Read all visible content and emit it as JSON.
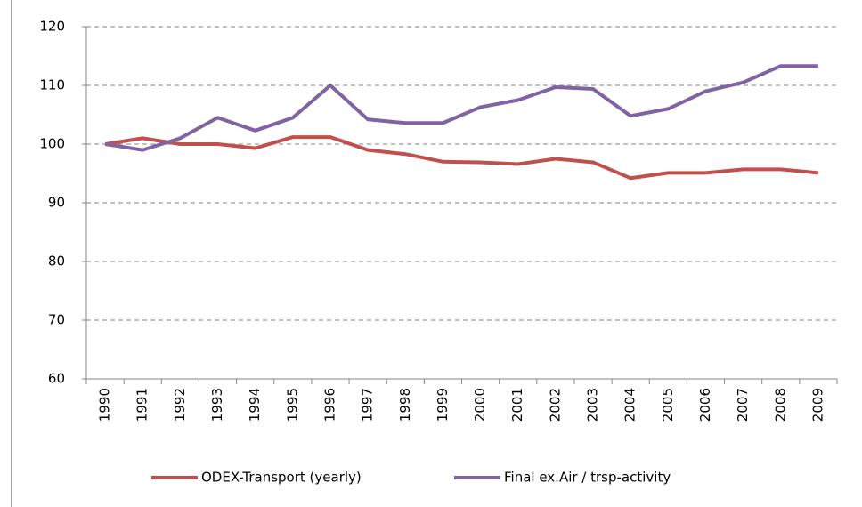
{
  "chart_data": {
    "type": "line",
    "categories": [
      "1990",
      "1991",
      "1992",
      "1993",
      "1994",
      "1995",
      "1996",
      "1997",
      "1998",
      "1999",
      "2000",
      "2001",
      "2002",
      "2003",
      "2004",
      "2005",
      "2006",
      "2007",
      "2008",
      "2009"
    ],
    "series": [
      {
        "name": "ODEX-Transport (yearly)",
        "color": "#c0504d",
        "values": [
          100,
          101,
          100,
          100,
          99.3,
          101.2,
          101.2,
          99,
          98.3,
          97,
          96.9,
          96.6,
          97.5,
          96.9,
          94.2,
          95.1,
          95.1,
          95.7,
          95.7,
          95.1
        ]
      },
      {
        "name": "Final ex.Air / trsp-activity",
        "color": "#8064a2",
        "values": [
          100,
          99,
          101,
          104.5,
          102.3,
          104.5,
          110,
          104.2,
          103.6,
          103.6,
          106.3,
          107.5,
          109.7,
          109.4,
          104.8,
          106,
          109,
          110.5,
          113.3,
          113.3
        ]
      }
    ],
    "ylim": [
      60,
      120
    ],
    "yticks": [
      60,
      70,
      80,
      90,
      100,
      110,
      120
    ],
    "grid": true,
    "legend": "bottom"
  }
}
